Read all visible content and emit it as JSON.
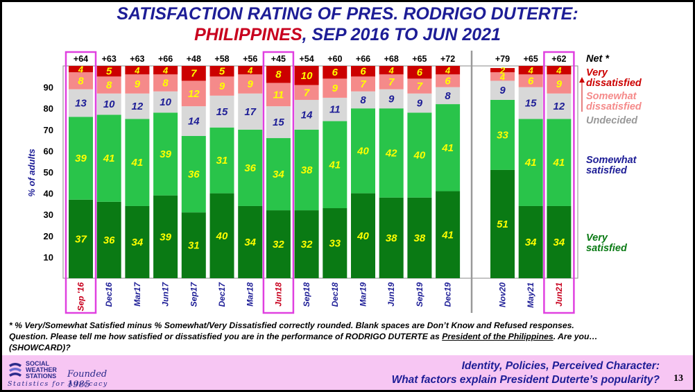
{
  "title": {
    "line1": "SATISFACTION RATING OF PRES. RODRIGO DUTERTE:",
    "line2_highlight": "PHILIPPINES",
    "line2_rest": ", SEP 2016 TO JUN 2021"
  },
  "footnote": {
    "line1": "* % Very/Somewhat Satisfied minus % Somewhat/Very Dissatisfied correctly rounded. Blank spaces are Don’t Know and Refused responses.",
    "line2_before": "Question. Please tell me how satisfied or dissatisfied you are in the performance of RODRIGO DUTERTE as ",
    "line2_underlined": "President of the Philippines",
    "line2_after": ".  Are you…",
    "line3": "(SHOWCARD)?"
  },
  "footer": {
    "logo_line1": "SOCIAL",
    "logo_line2": "WEATHER",
    "logo_line3": "STATIONS",
    "logo_founded": "Founded 1985",
    "logo_tagline": "Statistics for Advocacy",
    "text_line1": "Identity, Policies, Perceived Character:",
    "text_line2": "What factors explain President Duterte’s popularity?",
    "page_number": "13"
  },
  "colors": {
    "very_satisfied": "#0a7a14",
    "somewhat_satisfied": "#29c44a",
    "undecided": "#d8d8d8",
    "somewhat_dissatisfied": "#f58a8a",
    "very_dissatisfied": "#cc0000",
    "highlight_box": "#e040e0",
    "label_yellow": "#ffff00",
    "label_blue": "#1d1d96",
    "red_text": "#c8001e",
    "separator": "#999999"
  },
  "chart_data": {
    "type": "bar",
    "stacked": true,
    "ylabel": "% of adults",
    "yticks": [
      10,
      20,
      30,
      40,
      50,
      60,
      70,
      80,
      90
    ],
    "ylim": [
      0,
      100
    ],
    "net_header": "Net *",
    "categories": [
      "Sep '16",
      "Dec16",
      "Mar17",
      "Jun17",
      "Sep17",
      "Dec17",
      "Mar18",
      "Jun18",
      "Sep18",
      "Dec18",
      "Mar19",
      "Jun19",
      "Sep19",
      "Dec19",
      "Nov20",
      "May21",
      "Jun21"
    ],
    "category_groups": [
      14,
      3
    ],
    "highlighted_categories": [
      "Sep '16",
      "Jun18",
      "Jun21"
    ],
    "net": [
      "+64",
      "+63",
      "+63",
      "+66",
      "+48",
      "+58",
      "+56",
      "+45",
      "+54",
      "+60",
      "+66",
      "+68",
      "+65",
      "+72",
      "+79",
      "+65",
      "+62"
    ],
    "series": [
      {
        "name": "Very satisfied",
        "values": [
          37,
          36,
          34,
          39,
          31,
          40,
          34,
          32,
          32,
          33,
          40,
          38,
          38,
          41,
          51,
          34,
          34
        ]
      },
      {
        "name": "Somewhat satisfied",
        "values": [
          39,
          41,
          41,
          39,
          36,
          31,
          36,
          34,
          38,
          41,
          40,
          42,
          40,
          41,
          33,
          41,
          41
        ]
      },
      {
        "name": "Undecided",
        "values": [
          13,
          10,
          12,
          10,
          14,
          15,
          17,
          15,
          14,
          11,
          8,
          9,
          9,
          8,
          9,
          15,
          12
        ]
      },
      {
        "name": "Somewhat dissatisfied",
        "values": [
          8,
          8,
          9,
          8,
          12,
          9,
          9,
          11,
          7,
          9,
          7,
          7,
          7,
          6,
          4,
          6,
          9
        ]
      },
      {
        "name": "Very dissatisfied",
        "values": [
          4,
          5,
          4,
          4,
          7,
          5,
          4,
          8,
          10,
          6,
          6,
          4,
          6,
          4,
          2,
          4,
          4
        ]
      }
    ],
    "legend": [
      {
        "line1": "Net *",
        "line2": ""
      },
      {
        "line1": "Very",
        "line2": "dissatisfied"
      },
      {
        "line1": "Somewhat",
        "line2": "dissatisfied"
      },
      {
        "line1": "Undecided",
        "line2": ""
      },
      {
        "line1": "Somewhat",
        "line2": "satisfied"
      },
      {
        "line1": "Very",
        "line2": "satisfied"
      }
    ]
  }
}
